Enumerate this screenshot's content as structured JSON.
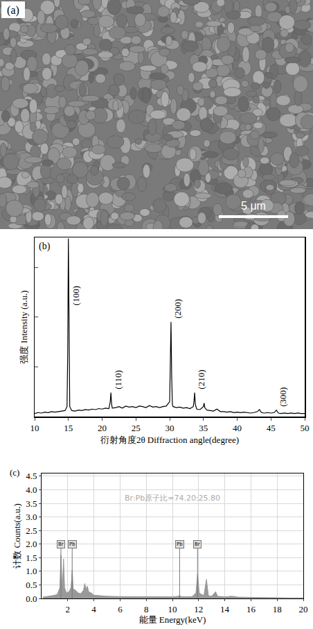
{
  "chart_data": [
    {
      "type": "image",
      "title": "(a)",
      "annotations": [
        "5 μm"
      ]
    },
    {
      "type": "line",
      "title": "(b)",
      "color": "#000000",
      "x_label": "衍射角度2θ Diffraction angle(degree)",
      "y_label": "强度 Intensity (a.u.)",
      "x": [
        10,
        10.5,
        11,
        11.5,
        12,
        12.5,
        13,
        13.5,
        14,
        14.5,
        14.8,
        14.9,
        15,
        15.1,
        15.2,
        15.5,
        16,
        16.5,
        17,
        17.5,
        18,
        18.5,
        19,
        19.5,
        20,
        20.5,
        21,
        21.2,
        21.3,
        21.4,
        21.5,
        22,
        22.5,
        23,
        23.5,
        24,
        24.5,
        25,
        25.5,
        26,
        26.5,
        27,
        27.5,
        28,
        28.5,
        29,
        29.5,
        30,
        30.1,
        30.2,
        30.3,
        30.4,
        30.5,
        31,
        31.5,
        32,
        32.5,
        33,
        33.5,
        33.6,
        33.7,
        33.8,
        34,
        34.5,
        35,
        35.1,
        35.2,
        35.5,
        36,
        36.5,
        37,
        37.5,
        38,
        38.5,
        39,
        39.5,
        40,
        40.5,
        41,
        41.5,
        42,
        42.5,
        43,
        43.3,
        43.6,
        44,
        44.5,
        45,
        45.5,
        45.8,
        46.1,
        46.5,
        47,
        47.5,
        48,
        48.5,
        49,
        49.5,
        50
      ],
      "values": [
        0.06,
        0.08,
        0.07,
        0.09,
        0.08,
        0.1,
        0.09,
        0.1,
        0.11,
        0.12,
        0.2,
        1.3,
        3.58,
        1.1,
        0.2,
        0.12,
        0.11,
        0.13,
        0.12,
        0.14,
        0.13,
        0.15,
        0.14,
        0.16,
        0.15,
        0.17,
        0.16,
        0.3,
        0.48,
        0.25,
        0.17,
        0.18,
        0.2,
        0.17,
        0.21,
        0.19,
        0.2,
        0.18,
        0.21,
        0.2,
        0.18,
        0.22,
        0.19,
        0.2,
        0.18,
        0.2,
        0.21,
        0.3,
        0.9,
        1.9,
        0.8,
        0.25,
        0.2,
        0.18,
        0.19,
        0.17,
        0.18,
        0.16,
        0.2,
        0.3,
        0.48,
        0.25,
        0.15,
        0.14,
        0.2,
        0.27,
        0.18,
        0.13,
        0.12,
        0.11,
        0.15,
        0.1,
        0.1,
        0.09,
        0.1,
        0.08,
        0.09,
        0.08,
        0.09,
        0.08,
        0.07,
        0.08,
        0.1,
        0.14,
        0.08,
        0.07,
        0.08,
        0.07,
        0.08,
        0.13,
        0.07,
        0.06,
        0.07,
        0.06,
        0.07,
        0.06,
        0.07,
        0.06,
        0.06
      ],
      "peak_labels": [
        {
          "x": 15,
          "label": "(100)"
        },
        {
          "x": 21.3,
          "label": "(110)"
        },
        {
          "x": 30.2,
          "label": "(200)"
        },
        {
          "x": 33.7,
          "label": "(210)"
        },
        {
          "x": 45.8,
          "label": "(300)"
        }
      ],
      "xlim": [
        10,
        50
      ],
      "xticks": [
        10,
        15,
        20,
        25,
        30,
        35,
        40,
        45,
        50
      ],
      "ylim": [
        0,
        3.6
      ],
      "yticks": [
        1,
        2,
        3
      ],
      "tick_labels": "x",
      "grid": false
    },
    {
      "type": "area",
      "title": "(c)",
      "color": "#999999",
      "x_label": "能量 Energy(keV)",
      "y_label": "计数 Counts(a.u.)",
      "annotations": [
        "Br:Pb原子比=74.20:25.80"
      ],
      "x": [
        0.1,
        0.3,
        0.5,
        0.8,
        1.0,
        1.2,
        1.4,
        1.48,
        1.55,
        1.6,
        1.68,
        1.76,
        1.9,
        2.1,
        2.25,
        2.34,
        2.42,
        2.6,
        2.8,
        3.0,
        3.2,
        3.3,
        3.4,
        3.5,
        3.6,
        3.8,
        4.0,
        4.5,
        5,
        6,
        7,
        8,
        9,
        10,
        10.45,
        10.55,
        10.65,
        11,
        11.5,
        11.8,
        11.92,
        12.05,
        12.4,
        12.6,
        12.75,
        13.0,
        13.3,
        13.45,
        14,
        14.5,
        14.8,
        15,
        16,
        17,
        18,
        19,
        20
      ],
      "values": [
        0.05,
        0.06,
        0.08,
        0.1,
        0.12,
        0.15,
        0.4,
        1.6,
        0.6,
        0.5,
        1.45,
        0.4,
        0.2,
        0.25,
        0.4,
        1.05,
        0.35,
        0.3,
        0.2,
        0.18,
        0.3,
        0.55,
        0.35,
        0.45,
        0.25,
        0.2,
        0.12,
        0.1,
        0.08,
        0.07,
        0.07,
        0.06,
        0.06,
        0.06,
        0.08,
        0.12,
        0.07,
        0.06,
        0.07,
        0.2,
        0.9,
        0.2,
        0.1,
        0.7,
        0.1,
        0.08,
        0.25,
        0.08,
        0.06,
        0.08,
        0.07,
        0.05,
        0.04,
        0.03,
        0.03,
        0.02,
        0.02
      ],
      "element_lines": [
        {
          "x": 1.48,
          "label": "Br",
          "height": 1.85
        },
        {
          "x": 2.34,
          "label": "Pb",
          "height": 1.85
        },
        {
          "x": 10.55,
          "label": "Pb",
          "height": 1.85
        },
        {
          "x": 11.92,
          "label": "Br",
          "height": 1.85
        }
      ],
      "xlim": [
        0,
        20
      ],
      "xticks": [
        2,
        4,
        6,
        8,
        10,
        12,
        14,
        16,
        18,
        20
      ],
      "ylim": [
        0,
        4.6
      ],
      "yticks": [
        {
          "value": 0,
          "label": "0.0"
        },
        0.5,
        {
          "value": 1,
          "label": "1.0"
        },
        1.5,
        {
          "value": 2,
          "label": "2.0"
        },
        2.5,
        {
          "value": 3,
          "label": "3.0"
        },
        3.5,
        {
          "value": 4,
          "label": "4.0"
        },
        4.5
      ],
      "grid": true
    }
  ]
}
